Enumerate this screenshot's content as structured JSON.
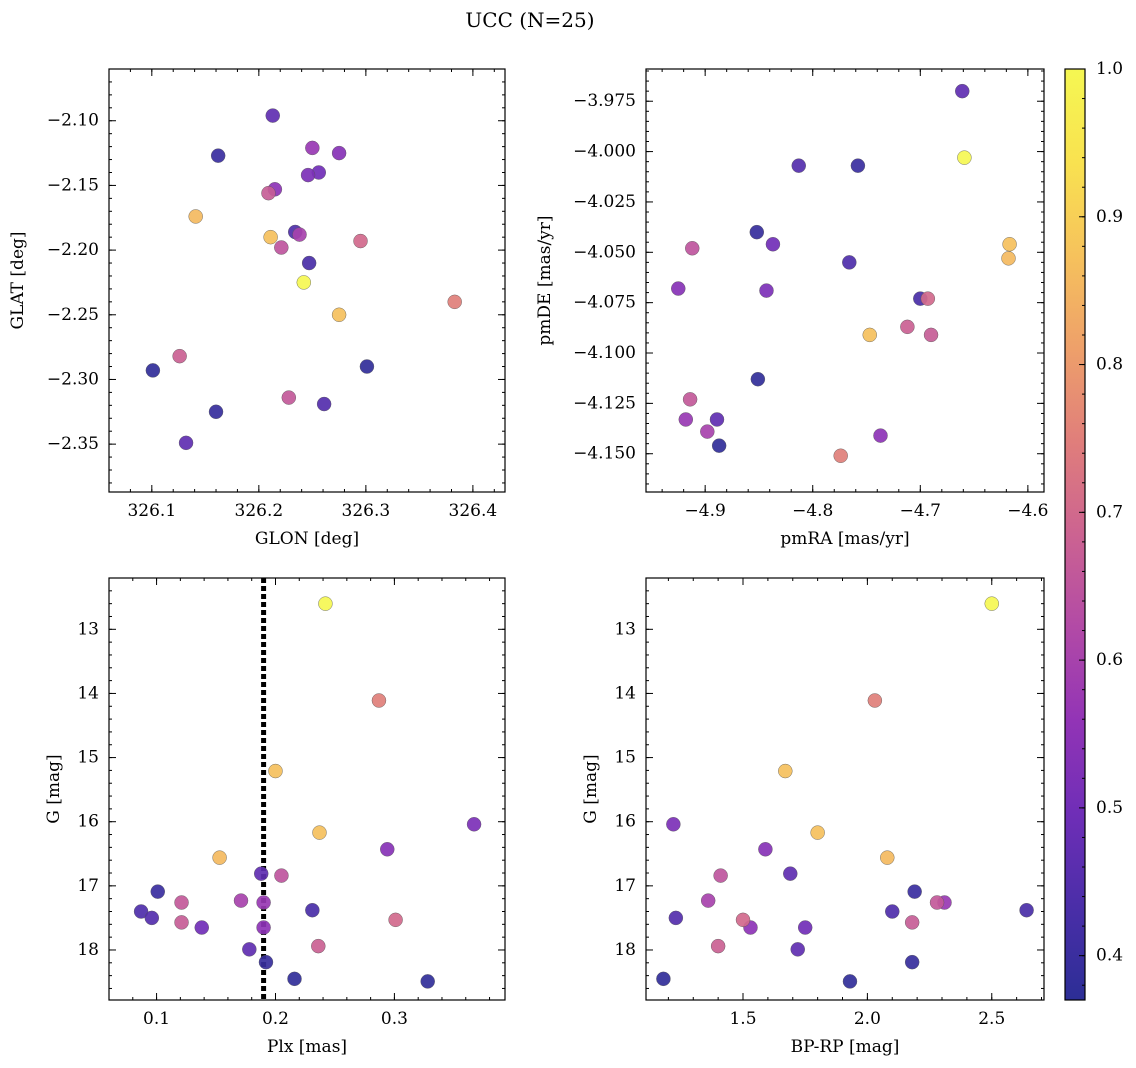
{
  "figure": {
    "title": "UCC (N=25)"
  },
  "colorbar": {
    "min": 0.37,
    "max": 1.0,
    "ticks": [
      0.4,
      0.5,
      0.6,
      0.7,
      0.8,
      0.9,
      1.0
    ],
    "tick_labels": [
      "0.4",
      "0.5",
      "0.6",
      "0.7",
      "0.8",
      "0.9",
      "1.0"
    ],
    "colormap": "plasma",
    "stops": [
      "#2c2e96",
      "#4a2ea8",
      "#6f2eb7",
      "#9234b6",
      "#b24aa6",
      "#cc6391",
      "#e07e7b",
      "#eea06a",
      "#f6c25c",
      "#f9e250",
      "#f5f752"
    ]
  },
  "chart_data": [
    {
      "type": "scatter",
      "name": "lonlat",
      "xlabel": "GLON [deg]",
      "ylabel": "GLAT [deg]",
      "xlim": [
        326.06,
        326.43
      ],
      "ylim": [
        -2.387,
        -2.06
      ],
      "xticks": [
        326.1,
        326.2,
        326.3,
        326.4
      ],
      "xtick_labels": [
        "326.1",
        "326.2",
        "326.3",
        "326.4"
      ],
      "yticks": [
        -2.1,
        -2.15,
        -2.2,
        -2.25,
        -2.3,
        -2.35
      ],
      "ytick_labels": [
        "−2.10",
        "−2.15",
        "−2.20",
        "−2.25",
        "−2.30",
        "−2.35"
      ],
      "invert_y": false,
      "ref_x": null
    },
    {
      "type": "scatter",
      "name": "pm",
      "xlabel": "pmRA [mas/yr]",
      "ylabel": "pmDE [mas/yr]",
      "xlim": [
        -4.955,
        -4.585
      ],
      "ylim": [
        -4.169,
        -3.959
      ],
      "xticks": [
        -4.9,
        -4.8,
        -4.7,
        -4.6
      ],
      "xtick_labels": [
        "−4.9",
        "−4.8",
        "−4.7",
        "−4.6"
      ],
      "yticks": [
        -3.975,
        -4.0,
        -4.025,
        -4.05,
        -4.075,
        -4.1,
        -4.125,
        -4.15
      ],
      "ytick_labels": [
        "−3.975",
        "−4.000",
        "−4.025",
        "−4.050",
        "−4.075",
        "−4.100",
        "−4.125",
        "−4.150"
      ],
      "invert_y": false,
      "ref_x": null
    },
    {
      "type": "scatter",
      "name": "plx",
      "xlabel": "Plx [mas]",
      "ylabel": "G [mag]",
      "xlim": [
        0.06,
        0.393
      ],
      "ylim": [
        18.78,
        12.2
      ],
      "xticks": [
        0.1,
        0.2,
        0.3
      ],
      "xtick_labels": [
        "0.1",
        "0.2",
        "0.3"
      ],
      "yticks": [
        13,
        14,
        15,
        16,
        17,
        18
      ],
      "ytick_labels": [
        "13",
        "14",
        "15",
        "16",
        "17",
        "18"
      ],
      "invert_y": true,
      "ref_x": 0.19
    },
    {
      "type": "scatter",
      "name": "cmd",
      "xlabel": "BP-RP [mag]",
      "ylabel": "G [mag]",
      "xlim": [
        1.11,
        2.71
      ],
      "ylim": [
        18.78,
        12.2
      ],
      "xticks": [
        1.5,
        2.0,
        2.5
      ],
      "xtick_labels": [
        "1.5",
        "2.0",
        "2.5"
      ],
      "yticks": [
        13,
        14,
        15,
        16,
        17,
        18
      ],
      "ytick_labels": [
        "13",
        "14",
        "15",
        "16",
        "17",
        "18"
      ],
      "invert_y": true,
      "ref_x": null
    }
  ],
  "members": [
    {
      "glon": 326.242,
      "glat": -2.225,
      "pmra": -4.659,
      "pmde": -4.003,
      "plx": 0.242,
      "g": 12.6,
      "bprp": 2.5,
      "p": 1.0
    },
    {
      "glon": 326.383,
      "glat": -2.24,
      "pmra": -4.774,
      "pmde": -4.151,
      "plx": 0.287,
      "g": 14.11,
      "bprp": 2.03,
      "p": 0.75
    },
    {
      "glon": 326.211,
      "glat": -2.19,
      "pmra": -4.747,
      "pmde": -4.091,
      "plx": 0.2,
      "g": 15.21,
      "bprp": 1.67,
      "p": 0.87
    },
    {
      "glon": 326.275,
      "glat": -2.25,
      "pmra": -4.617,
      "pmde": -4.046,
      "plx": 0.237,
      "g": 16.17,
      "bprp": 1.8,
      "p": 0.87
    },
    {
      "glon": 326.141,
      "glat": -2.174,
      "pmra": -4.618,
      "pmde": -4.053,
      "plx": 0.153,
      "g": 16.56,
      "bprp": 2.08,
      "p": 0.86
    },
    {
      "glon": 326.295,
      "glat": -2.193,
      "pmra": -4.693,
      "pmde": -4.073,
      "plx": 0.301,
      "g": 17.53,
      "bprp": 1.5,
      "p": 0.7
    },
    {
      "glon": 326.126,
      "glat": -2.282,
      "pmra": -4.712,
      "pmde": -4.087,
      "plx": 0.236,
      "g": 17.94,
      "bprp": 1.4,
      "p": 0.68
    },
    {
      "glon": 326.209,
      "glat": -2.156,
      "pmra": -4.69,
      "pmde": -4.091,
      "plx": 0.121,
      "g": 17.57,
      "bprp": 2.18,
      "p": 0.67
    },
    {
      "glon": 326.228,
      "glat": -2.314,
      "pmra": -4.914,
      "pmde": -4.123,
      "plx": 0.121,
      "g": 17.26,
      "bprp": 2.28,
      "p": 0.66
    },
    {
      "glon": 326.221,
      "glat": -2.198,
      "pmra": -4.912,
      "pmde": -4.048,
      "plx": 0.205,
      "g": 16.84,
      "bprp": 1.41,
      "p": 0.65
    },
    {
      "glon": 326.238,
      "glat": -2.188,
      "pmra": -4.898,
      "pmde": -4.139,
      "plx": 0.171,
      "g": 17.23,
      "bprp": 1.36,
      "p": 0.6
    },
    {
      "glon": 326.25,
      "glat": -2.121,
      "pmra": -4.918,
      "pmde": -4.133,
      "plx": 0.19,
      "g": 17.26,
      "bprp": 2.31,
      "p": 0.57
    },
    {
      "glon": 326.215,
      "glat": -2.153,
      "pmra": -4.737,
      "pmde": -4.141,
      "plx": 0.19,
      "g": 17.65,
      "bprp": 1.53,
      "p": 0.55
    },
    {
      "glon": 326.275,
      "glat": -2.125,
      "pmra": -4.925,
      "pmde": -4.068,
      "plx": 0.294,
      "g": 16.43,
      "bprp": 1.59,
      "p": 0.54
    },
    {
      "glon": 326.246,
      "glat": -2.142,
      "pmra": -4.843,
      "pmde": -4.069,
      "plx": 0.367,
      "g": 16.04,
      "bprp": 1.22,
      "p": 0.52
    },
    {
      "glon": 326.256,
      "glat": -2.14,
      "pmra": -4.837,
      "pmde": -4.046,
      "plx": 0.138,
      "g": 17.65,
      "bprp": 1.75,
      "p": 0.5
    },
    {
      "glon": 326.213,
      "glat": -2.096,
      "pmra": -4.661,
      "pmde": -3.97,
      "plx": 0.188,
      "g": 16.81,
      "bprp": 1.69,
      "p": 0.47
    },
    {
      "glon": 326.132,
      "glat": -2.349,
      "pmra": -4.889,
      "pmde": -4.133,
      "plx": 0.178,
      "g": 17.99,
      "bprp": 1.72,
      "p": 0.47
    },
    {
      "glon": 326.261,
      "glat": -2.319,
      "pmra": -4.813,
      "pmde": -4.007,
      "plx": 0.096,
      "g": 17.5,
      "bprp": 1.23,
      "p": 0.45
    },
    {
      "glon": 326.234,
      "glat": -2.186,
      "pmra": -4.766,
      "pmde": -4.055,
      "plx": 0.087,
      "g": 17.4,
      "bprp": 2.1,
      "p": 0.44
    },
    {
      "glon": 326.247,
      "glat": -2.21,
      "pmra": -4.7,
      "pmde": -4.073,
      "plx": 0.231,
      "g": 17.38,
      "bprp": 2.64,
      "p": 0.43
    },
    {
      "glon": 326.162,
      "glat": -2.127,
      "pmra": -4.758,
      "pmde": -4.007,
      "plx": 0.101,
      "g": 17.09,
      "bprp": 2.19,
      "p": 0.4
    },
    {
      "glon": 326.16,
      "glat": -2.325,
      "pmra": -4.852,
      "pmde": -4.04,
      "plx": 0.192,
      "g": 18.19,
      "bprp": 2.18,
      "p": 0.39
    },
    {
      "glon": 326.101,
      "glat": -2.293,
      "pmra": -4.887,
      "pmde": -4.146,
      "plx": 0.216,
      "g": 18.45,
      "bprp": 1.18,
      "p": 0.38
    },
    {
      "glon": 326.301,
      "glat": -2.29,
      "pmra": -4.851,
      "pmde": -4.113,
      "plx": 0.328,
      "g": 18.49,
      "bprp": 1.93,
      "p": 0.38
    }
  ]
}
